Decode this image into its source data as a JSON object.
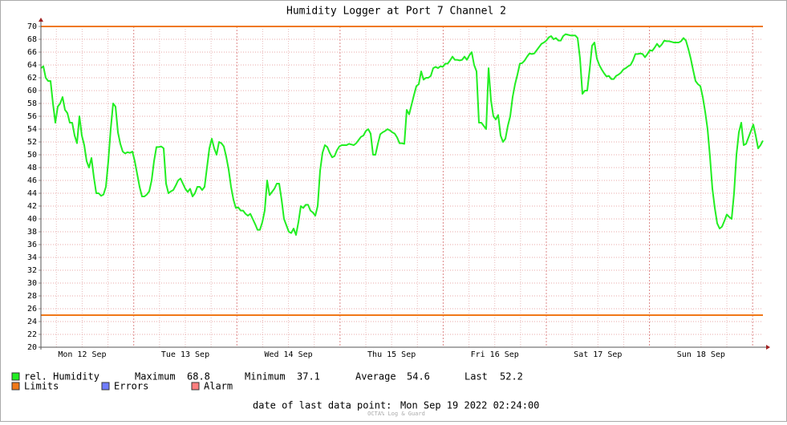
{
  "chart_data": {
    "type": "line",
    "title": "Humidity Logger at Port 7 Channel 2",
    "xtick_labels": [
      "Mon 12 Sep",
      "Tue 13 Sep",
      "Wed 14 Sep",
      "Thu 15 Sep",
      "Fri 16 Sep",
      "Sat 17 Sep",
      "Sun 18 Sep"
    ],
    "ylim": [
      20,
      70
    ],
    "yticks": [
      20,
      22,
      24,
      26,
      28,
      30,
      32,
      34,
      36,
      38,
      40,
      42,
      44,
      46,
      48,
      50,
      52,
      54,
      56,
      58,
      60,
      62,
      64,
      66,
      68,
      70
    ],
    "grid": true,
    "series": [
      {
        "name": "rel. Humidity",
        "color": "#22ee22",
        "values": [
          63.5,
          63.8,
          62,
          61.5,
          61.5,
          58,
          55,
          57.5,
          58,
          59,
          57,
          56.5,
          55,
          55,
          53,
          51.8,
          56,
          53,
          51.5,
          49,
          48,
          49.5,
          46.5,
          44,
          44,
          43.6,
          43.8,
          45,
          49,
          54,
          58,
          57.5,
          53.5,
          51.7,
          50.5,
          50.2,
          50.4,
          50.3,
          50.5,
          49,
          47,
          45,
          43.5,
          43.5,
          43.8,
          44.3,
          46,
          49,
          51.2,
          51.2,
          51.3,
          51,
          45.5,
          44,
          44.3,
          44.5,
          45.2,
          46,
          46.3,
          45.5,
          44.7,
          44.2,
          44.7,
          43.5,
          44,
          45,
          45,
          44.5,
          45,
          48,
          51,
          52.5,
          51,
          50,
          52,
          51.8,
          51.3,
          49.7,
          47.7,
          45,
          43,
          41.7,
          41.8,
          41.3,
          41.3,
          40.8,
          40.5,
          40.8,
          40,
          39.2,
          38.3,
          38.3,
          39.5,
          41.3,
          46,
          43.7,
          44.2,
          44.7,
          45.5,
          45.5,
          43,
          40,
          39,
          38,
          37.8,
          38.5,
          37.5,
          39.5,
          42,
          41.7,
          42.2,
          42.2,
          41.3,
          41,
          40.5,
          42,
          47.5,
          50.3,
          51.5,
          51.2,
          50.3,
          49.6,
          49.8,
          50.7,
          51.3,
          51.5,
          51.5,
          51.5,
          51.7,
          51.6,
          51.5,
          51.8,
          52.3,
          52.8,
          53,
          53.7,
          54,
          53.3,
          50,
          50,
          51.7,
          53.2,
          53.5,
          53.7,
          54,
          53.8,
          53.5,
          53.3,
          52.7,
          51.8,
          51.8,
          51.7,
          57,
          56.3,
          57.8,
          59.3,
          60.7,
          61,
          63,
          61.7,
          62,
          62,
          62.3,
          63.5,
          63.7,
          63.5,
          63.8,
          63.7,
          64.2,
          64.2,
          64.7,
          65.3,
          64.8,
          64.8,
          64.7,
          64.8,
          65.3,
          64.8,
          65.5,
          66,
          64,
          63,
          55,
          55,
          54.5,
          54,
          63.5,
          58.5,
          56,
          55.5,
          56.2,
          53,
          52,
          52.5,
          54.5,
          56,
          59,
          61,
          62.5,
          64.2,
          64.3,
          64.7,
          65.3,
          65.8,
          65.7,
          65.8,
          66.3,
          66.8,
          67.3,
          67.5,
          67.8,
          68.3,
          68.5,
          68,
          68.2,
          67.8,
          67.8,
          68.5,
          68.8,
          68.7,
          68.6,
          68.6,
          68.6,
          68.2,
          65,
          59.5,
          60,
          60,
          63.3,
          67,
          67.5,
          65,
          64,
          63.3,
          62.7,
          62.2,
          62.3,
          61.8,
          61.8,
          62.3,
          62.5,
          62.8,
          63.3,
          63.5,
          63.8,
          64,
          64.7,
          65.7,
          65.7,
          65.8,
          65.7,
          65.2,
          65.7,
          66.3,
          66.2,
          66.7,
          67.3,
          66.8,
          67.2,
          67.8,
          67.7,
          67.7,
          67.6,
          67.5,
          67.5,
          67.5,
          67.7,
          68.2,
          67.8,
          66.5,
          65,
          63.2,
          61.5,
          61,
          60.7,
          59,
          56.7,
          54,
          49.7,
          44.7,
          41.7,
          39.3,
          38.5,
          38.8,
          39.7,
          40.7,
          40.3,
          40,
          44,
          50,
          53.5,
          55,
          51.5,
          51.7,
          52.7,
          53.7,
          54.7,
          53,
          51,
          51.5,
          52.2
        ]
      }
    ],
    "limits": {
      "name": "Limits",
      "color": "#f07818",
      "values": [
        70,
        25
      ]
    },
    "stats": [
      {
        "label": "Maximum",
        "value": 68.8
      },
      {
        "label": "Minimum",
        "value": 37.1
      },
      {
        "label": "Average",
        "value": 54.6
      },
      {
        "label": "Last",
        "value": 52.2
      }
    ],
    "legend_extra": [
      {
        "name": "Errors",
        "color": "#6f7cff"
      },
      {
        "name": "Alarm",
        "color": "#ff7f7f"
      }
    ],
    "footer_label": "date of last data point:",
    "footer_value": "Mon Sep 19 2022 02:24:00",
    "watermark": "OCTA% Log & Guard"
  }
}
